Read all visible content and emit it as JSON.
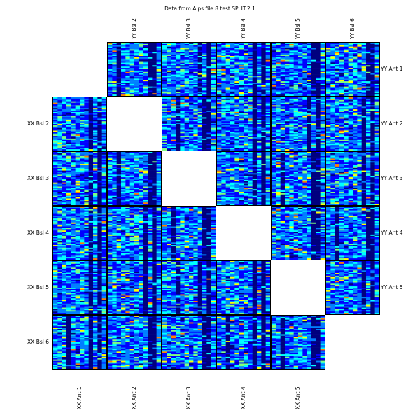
{
  "title": "Data from Aips file 8.test.SPLIT.2.1",
  "top_labels": [
    "YY Bsl 2",
    "YY Bsl 3",
    "YY Bsl 4",
    "YY Bsl 5",
    "YY Bsl 6"
  ],
  "bottom_labels": [
    "XX Ant 1",
    "XX Ant 2",
    "XX Ant 3",
    "XX Ant 4",
    "XX Ant 5"
  ],
  "left_labels": [
    "XX Bsl 2",
    "XX Bsl 3",
    "XX Bsl 4",
    "XX Bsl 5",
    "XX Bsl 6"
  ],
  "right_labels": [
    "YY Ant 1",
    "YY Ant 2",
    "YY Ant 3",
    "YY Ant 4",
    "YY Ant 5"
  ],
  "chart_data": {
    "type": "heatmap",
    "colormap": "jet",
    "colormap_stops": [
      "#00007f",
      "#0000ff",
      "#007fff",
      "#00ffff",
      "#7fff7f",
      "#ffff00",
      "#ff7f00",
      "#ff0000",
      "#7f0000"
    ],
    "grid_rows": 6,
    "grid_cols": 6,
    "empty_diagonal": true,
    "panel_rows": [
      [
        null,
        "YY 1-2",
        "YY 1-3",
        "YY 1-4",
        "YY 1-5",
        "YY 1-6"
      ],
      [
        "XX 1-2",
        null,
        "YY 2-3",
        "YY 2-4",
        "YY 2-5",
        "YY 2-6"
      ],
      [
        "XX 1-3",
        "XX 2-3",
        null,
        "YY 3-4",
        "YY 3-5",
        "YY 3-6"
      ],
      [
        "XX 1-4",
        "XX 2-4",
        "XX 3-4",
        null,
        "YY 4-5",
        "YY 4-6"
      ],
      [
        "XX 1-5",
        "XX 2-5",
        "XX 3-5",
        "XX 4-5",
        null,
        "YY 5-6"
      ],
      [
        "XX 1-6",
        "XX 2-6",
        "XX 3-6",
        "XX 4-6",
        "XX 5-6",
        null
      ]
    ]
  }
}
